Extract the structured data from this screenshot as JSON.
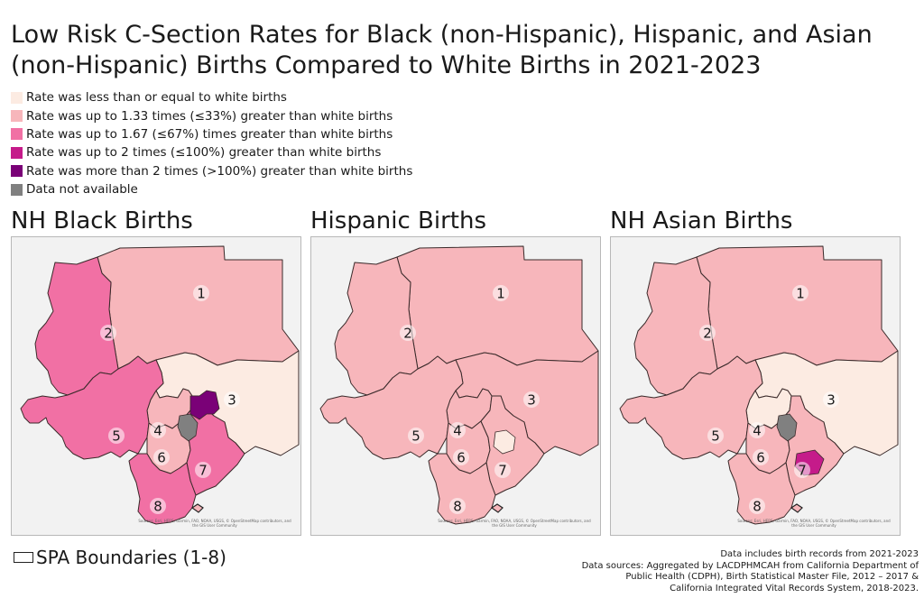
{
  "title_line1": "Low Risk C-Section Rates for Black (non-Hispanic), Hispanic, and Asian",
  "title_line2": "(non-Hispanic) Births Compared to White Births in 2021-2023",
  "legend": [
    {
      "label": "Rate was less than or equal to white births",
      "color": "#fcebe2"
    },
    {
      "label": "Rate was up to 1.33 times (≤33%) greater than white births",
      "color": "#f7b6bb"
    },
    {
      "label": "Rate was up to 1.67 (≤67%) times greater than white births",
      "color": "#f170a4"
    },
    {
      "label": "Rate was up to 2 times (≤100%) greater than white births",
      "color": "#c51b8a"
    },
    {
      "label": "Rate was more than 2 times (>100%) greater than white births",
      "color": "#7a0177"
    },
    {
      "label": "Data not available",
      "color": "#808080"
    }
  ],
  "maps": [
    {
      "title": "NH Black Births",
      "spa_colors": {
        "1": "#f7b6bb",
        "2": "#f170a4",
        "3": "#fcebe2",
        "4": "#f7b6bb",
        "5": "#f170a4",
        "6": "#f7b6bb",
        "7": "#f170a4",
        "8": "#f170a4"
      },
      "extra_patches": [
        {
          "region": "central",
          "color": "#7a0177"
        },
        {
          "region": "gray",
          "color": "#808080"
        }
      ],
      "attribution": "Sources: Esri, HERE, Garmin, FAO, NOAA, USGS, © OpenStreetMap contributors, and the GIS User Community"
    },
    {
      "title": "Hispanic Births",
      "spa_colors": {
        "1": "#f7b6bb",
        "2": "#f7b6bb",
        "3": "#f7b6bb",
        "4": "#f7b6bb",
        "5": "#f7b6bb",
        "6": "#f7b6bb",
        "7": "#f7b6bb",
        "8": "#f7b6bb"
      },
      "extra_patches": [
        {
          "region": "light7",
          "color": "#fcebe2"
        }
      ],
      "attribution": "Sources: Esri, HERE, Garmin, FAO, NOAA, USGS, © OpenStreetMap contributors, and the GIS User Community"
    },
    {
      "title": "NH Asian Births",
      "spa_colors": {
        "1": "#f7b6bb",
        "2": "#f7b6bb",
        "3": "#fcebe2",
        "4": "#fcebe2",
        "5": "#f7b6bb",
        "6": "#f7b6bb",
        "7": "#f7b6bb",
        "8": "#f7b6bb"
      },
      "extra_patches": [
        {
          "region": "magenta",
          "color": "#c51b8a"
        },
        {
          "region": "gray",
          "color": "#808080"
        }
      ],
      "attribution": "Sources: Esri, HERE, Garmin, FAO, NOAA, USGS, © OpenStreetMap contributors, and the GIS User Community"
    }
  ],
  "spa_legend_label": "SPA Boundaries (1-8)",
  "sources": [
    "Data includes birth records from 2021-2023",
    "Data sources: Aggregated by LACDPHMCAH from California Department of",
    "Public Health (CDPH), Birth Statistical Master File, 2012 – 2017 &",
    "California Integrated Vital Records System, 2018-2023."
  ]
}
